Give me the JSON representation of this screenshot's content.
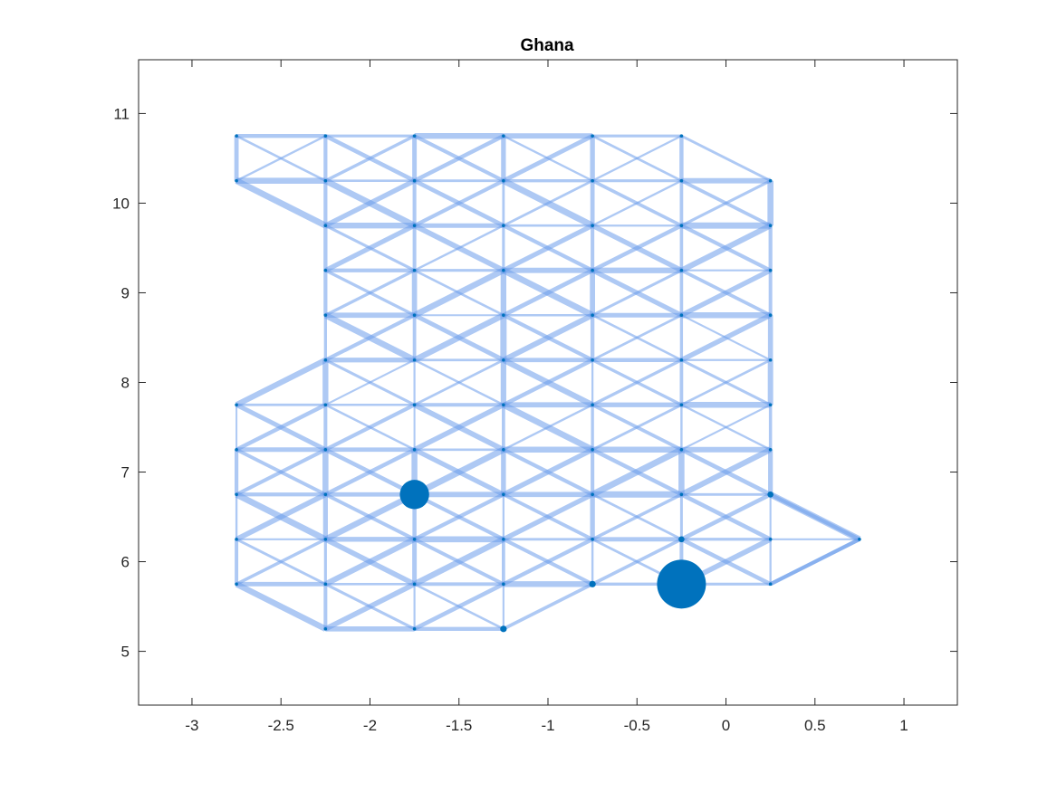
{
  "chart_data": {
    "type": "scatter",
    "title": "Ghana",
    "xlabel": "",
    "ylabel": "",
    "xlim": [
      -3.3,
      1.3
    ],
    "ylim": [
      4.4,
      11.6
    ],
    "xticks": [
      -3,
      -2.5,
      -2,
      -1.5,
      -1,
      -0.5,
      0,
      0.5,
      1
    ],
    "xtick_labels": [
      "-3",
      "-2.5",
      "-2",
      "-1.5",
      "-1",
      "-0.5",
      "0",
      "0.5",
      "1"
    ],
    "yticks": [
      5,
      6,
      7,
      8,
      9,
      10,
      11
    ],
    "ytick_labels": [
      "5",
      "6",
      "7",
      "8",
      "9",
      "10",
      "11"
    ],
    "grid": false,
    "box": true,
    "edge_color": "#6c9ceb",
    "node_color": "#0072bd",
    "grid_spacing": 0.5,
    "rows": [
      {
        "y": 10.75,
        "x": [
          -2.75,
          -2.25,
          -1.75,
          -1.25,
          -0.75,
          -0.25
        ]
      },
      {
        "y": 10.25,
        "x": [
          -2.75,
          -2.25,
          -1.75,
          -1.25,
          -0.75,
          -0.25,
          0.25
        ]
      },
      {
        "y": 9.75,
        "x": [
          -2.25,
          -1.75,
          -1.25,
          -0.75,
          -0.25,
          0.25
        ]
      },
      {
        "y": 9.25,
        "x": [
          -2.25,
          -1.75,
          -1.25,
          -0.75,
          -0.25,
          0.25
        ]
      },
      {
        "y": 8.75,
        "x": [
          -2.25,
          -1.75,
          -1.25,
          -0.75,
          -0.25,
          0.25
        ]
      },
      {
        "y": 8.25,
        "x": [
          -2.25,
          -1.75,
          -1.25,
          -0.75,
          -0.25,
          0.25
        ]
      },
      {
        "y": 7.75,
        "x": [
          -2.75,
          -2.25,
          -1.75,
          -1.25,
          -0.75,
          -0.25,
          0.25
        ]
      },
      {
        "y": 7.25,
        "x": [
          -2.75,
          -2.25,
          -1.75,
          -1.25,
          -0.75,
          -0.25,
          0.25
        ]
      },
      {
        "y": 6.75,
        "x": [
          -2.75,
          -2.25,
          -1.75,
          -1.25,
          -0.75,
          -0.25,
          0.25
        ]
      },
      {
        "y": 6.25,
        "x": [
          -2.75,
          -2.25,
          -1.75,
          -1.25,
          -0.75,
          -0.25,
          0.25,
          0.75
        ]
      },
      {
        "y": 5.75,
        "x": [
          -2.75,
          -2.25,
          -1.75,
          -1.25,
          -0.75,
          -0.25,
          0.25
        ]
      },
      {
        "y": 5.25,
        "x": [
          -2.25,
          -1.75,
          -1.25
        ]
      }
    ],
    "large_nodes": [
      {
        "x": -1.75,
        "y": 6.75,
        "size": 3
      },
      {
        "x": -0.25,
        "y": 5.75,
        "size": 5
      },
      {
        "x": -1.25,
        "y": 5.25,
        "size": 1.2
      },
      {
        "x": -0.75,
        "y": 5.75,
        "size": 1.2
      },
      {
        "x": 0.25,
        "y": 6.75,
        "size": 1.1
      },
      {
        "x": -0.25,
        "y": 6.25,
        "size": 1.1
      }
    ]
  }
}
